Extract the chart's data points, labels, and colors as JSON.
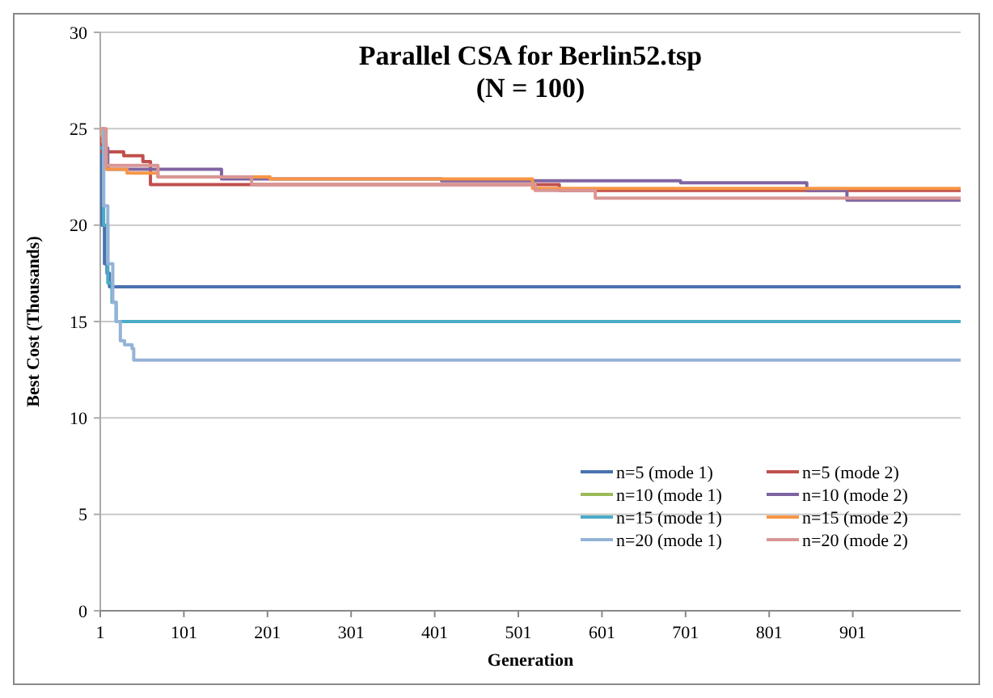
{
  "chart_data": {
    "type": "step",
    "title": "Parallel CSA for Berlin52.tsp\n(N = 100)",
    "xlabel": "Generation",
    "ylabel": "Best Cost (Thousands)",
    "xlim": [
      1,
      1030
    ],
    "xticks": [
      1,
      101,
      201,
      301,
      401,
      501,
      601,
      701,
      801,
      901
    ],
    "ylim": [
      0,
      30
    ],
    "yticks": [
      0,
      5,
      10,
      15,
      20,
      25,
      30
    ],
    "grid": "y",
    "legend": "bottom right",
    "marker": "none",
    "line_style": "solid",
    "series": [
      {
        "name": "n=5 (mode 1)",
        "color": "#4a72b0",
        "x": [
          1,
          3,
          6,
          9,
          12,
          1030
        ],
        "values": [
          24,
          20,
          18,
          17.5,
          16.8,
          16.8
        ]
      },
      {
        "name": "n=5 (mode 2)",
        "color": "#c0504d",
        "x": [
          1,
          3,
          29,
          52,
          61,
          550,
          1030
        ],
        "values": [
          24.5,
          23.8,
          23.6,
          23.3,
          22.1,
          21.8,
          21.8
        ]
      },
      {
        "name": "n=10 (mode 1)",
        "color": "#9bbb59"
      },
      {
        "name": "n=10 (mode 2)",
        "color": "#8064a2",
        "x": [
          1,
          10,
          146,
          409,
          695,
          846,
          894,
          1030
        ],
        "values": [
          24,
          22.9,
          22.4,
          22.3,
          22.2,
          21.8,
          21.3,
          21.3
        ]
      },
      {
        "name": "n=15 (mode 1)",
        "color": "#4bacc6",
        "x": [
          1,
          5,
          10,
          15,
          20,
          1030
        ],
        "values": [
          24,
          20,
          17,
          16,
          15,
          15
        ]
      },
      {
        "name": "n=15 (mode 2)",
        "color": "#f79646",
        "x": [
          1,
          4,
          8,
          33,
          70,
          204,
          518,
          1030
        ],
        "values": [
          25,
          24.3,
          22.9,
          22.7,
          22.5,
          22.4,
          21.9,
          21.9
        ]
      },
      {
        "name": "n=20 (mode 1)",
        "color": "#95b3d7",
        "x": [
          1,
          5,
          10,
          16,
          20,
          25,
          30,
          39,
          41,
          1030
        ],
        "values": [
          25,
          21,
          18,
          16,
          15,
          14,
          13.8,
          13.6,
          13,
          13
        ]
      },
      {
        "name": "n=20 (mode 2)",
        "color": "#d99694",
        "x": [
          1,
          8,
          70,
          182,
          521,
          593,
          1030
        ],
        "values": [
          25,
          23.1,
          22.5,
          22.1,
          21.8,
          21.4,
          21.4
        ]
      }
    ]
  }
}
